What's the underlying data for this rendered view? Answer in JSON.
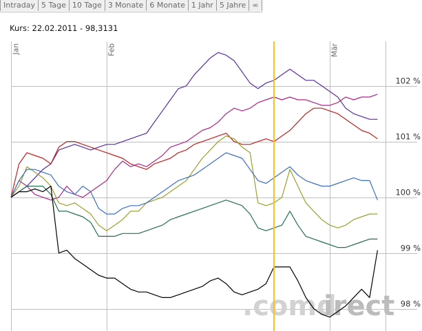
{
  "tabs": [
    "Intraday",
    "5 Tage",
    "10 Tage",
    "3 Monate",
    "6 Monate",
    "1 Jahr",
    "5 Jahre",
    "∞"
  ],
  "quote": {
    "label": "Kurs:",
    "date": "22.02.2011",
    "separator": "-",
    "value": "98,3131"
  },
  "watermark": {
    "part1": ".comd",
    "part2": "irect"
  },
  "colors": {
    "grid": "#bebebe",
    "marker": "#f6c02a",
    "background": "#ffffff"
  },
  "chart_data": {
    "type": "line",
    "x": [
      "2011-01-20",
      "2011-01-21",
      "2011-01-22",
      "2011-01-23",
      "2011-01-24",
      "2011-01-25",
      "2011-01-26",
      "2011-01-27",
      "2011-01-28",
      "2011-01-29",
      "2011-01-30",
      "2011-01-31",
      "2011-02-01",
      "2011-02-02",
      "2011-02-03",
      "2011-02-04",
      "2011-02-05",
      "2011-02-06",
      "2011-02-07",
      "2011-02-08",
      "2011-02-09",
      "2011-02-10",
      "2011-02-11",
      "2011-02-12",
      "2011-02-13",
      "2011-02-14",
      "2011-02-15",
      "2011-02-16",
      "2011-02-17",
      "2011-02-18",
      "2011-02-19",
      "2011-02-20",
      "2011-02-21",
      "2011-02-22",
      "2011-02-23",
      "2011-02-24",
      "2011-02-25",
      "2011-02-26",
      "2011-02-27",
      "2011-02-28",
      "2011-03-01",
      "2011-03-02",
      "2011-03-03",
      "2011-03-04",
      "2011-03-05",
      "2011-03-06",
      "2011-03-07"
    ],
    "x_ticks": [
      {
        "x": "2011-01-20",
        "label": "Jan"
      },
      {
        "x": "2011-02-01",
        "label": "Feb"
      },
      {
        "x": "2011-03-01",
        "label": "Mär"
      }
    ],
    "y_ticks": [
      {
        "value": 98,
        "label": "98 %"
      },
      {
        "value": 99,
        "label": "99 %"
      },
      {
        "value": 100,
        "label": "100 %"
      },
      {
        "value": 101,
        "label": "101 %"
      },
      {
        "value": 102,
        "label": "102 %"
      }
    ],
    "ylim": [
      97.6,
      102.8
    ],
    "xrange": [
      "2011-01-20",
      "2011-03-08"
    ],
    "grid": true,
    "marker_x": "2011-02-22",
    "series": [
      {
        "color": "#5a2ca0",
        "values": [
          100.0,
          100.1,
          100.2,
          100.35,
          100.5,
          100.6,
          100.85,
          100.9,
          100.95,
          100.9,
          100.85,
          100.9,
          100.95,
          100.95,
          101.0,
          101.05,
          101.1,
          101.15,
          101.35,
          101.55,
          101.75,
          101.95,
          102.0,
          102.2,
          102.35,
          102.5,
          102.6,
          102.55,
          102.45,
          102.25,
          102.05,
          101.95,
          102.05,
          102.1,
          102.2,
          102.3,
          102.2,
          102.1,
          102.1,
          102.0,
          101.9,
          101.8,
          101.6,
          101.5,
          101.45,
          101.4,
          101.4
        ]
      },
      {
        "color": "#c41e1e",
        "values": [
          100.0,
          100.6,
          100.8,
          100.75,
          100.7,
          100.6,
          100.9,
          101.0,
          101.0,
          100.95,
          100.9,
          100.85,
          100.8,
          100.75,
          100.7,
          100.6,
          100.55,
          100.5,
          100.6,
          100.65,
          100.7,
          100.8,
          100.85,
          100.95,
          101.0,
          101.05,
          101.1,
          101.15,
          101.0,
          100.95,
          100.95,
          101.0,
          101.05,
          101.0,
          101.1,
          101.2,
          101.35,
          101.5,
          101.6,
          101.6,
          101.55,
          101.5,
          101.4,
          101.3,
          101.2,
          101.15,
          101.05
        ]
      },
      {
        "color": "#b0248c",
        "values": [
          100.0,
          100.3,
          100.2,
          100.05,
          100.0,
          99.95,
          100.0,
          100.2,
          100.05,
          100.0,
          100.1,
          100.2,
          100.3,
          100.5,
          100.65,
          100.55,
          100.6,
          100.55,
          100.65,
          100.75,
          100.9,
          100.95,
          101.0,
          101.1,
          101.2,
          101.25,
          101.35,
          101.5,
          101.6,
          101.55,
          101.6,
          101.7,
          101.75,
          101.8,
          101.75,
          101.8,
          101.75,
          101.75,
          101.7,
          101.65,
          101.65,
          101.7,
          101.8,
          101.75,
          101.8,
          101.8,
          101.85
        ]
      },
      {
        "color": "#9aa02a",
        "values": [
          100.0,
          100.2,
          100.55,
          100.45,
          100.35,
          100.2,
          99.9,
          99.85,
          99.9,
          99.8,
          99.7,
          99.5,
          99.4,
          99.5,
          99.6,
          99.75,
          99.75,
          99.9,
          99.95,
          100.0,
          100.1,
          100.2,
          100.3,
          100.5,
          100.7,
          100.85,
          101.0,
          101.1,
          101.05,
          100.9,
          100.8,
          99.9,
          99.85,
          99.9,
          100.0,
          100.5,
          100.2,
          99.9,
          99.75,
          99.6,
          99.5,
          99.45,
          99.5,
          99.6,
          99.65,
          99.7,
          99.7
        ]
      },
      {
        "color": "#3a6fc0",
        "values": [
          100.0,
          100.3,
          100.5,
          100.5,
          100.45,
          100.4,
          100.2,
          100.1,
          100.05,
          100.2,
          100.1,
          99.8,
          99.7,
          99.7,
          99.8,
          99.85,
          99.85,
          99.9,
          100.0,
          100.1,
          100.2,
          100.3,
          100.35,
          100.4,
          100.5,
          100.6,
          100.7,
          100.8,
          100.75,
          100.7,
          100.5,
          100.3,
          100.25,
          100.35,
          100.45,
          100.55,
          100.4,
          100.3,
          100.25,
          100.2,
          100.2,
          100.25,
          100.3,
          100.35,
          100.3,
          100.3,
          99.95
        ]
      },
      {
        "color": "#227050",
        "values": [
          100.0,
          100.1,
          100.2,
          100.2,
          100.2,
          100.05,
          99.75,
          99.75,
          99.7,
          99.65,
          99.55,
          99.3,
          99.3,
          99.3,
          99.35,
          99.35,
          99.35,
          99.4,
          99.45,
          99.5,
          99.6,
          99.65,
          99.7,
          99.75,
          99.8,
          99.85,
          99.9,
          99.95,
          99.9,
          99.85,
          99.7,
          99.45,
          99.4,
          99.45,
          99.5,
          99.75,
          99.5,
          99.3,
          99.25,
          99.2,
          99.15,
          99.1,
          99.1,
          99.15,
          99.2,
          99.25,
          99.25
        ]
      },
      {
        "color": "#000000",
        "values": [
          100.0,
          100.1,
          100.1,
          100.15,
          100.1,
          100.2,
          99.0,
          99.05,
          98.9,
          98.8,
          98.7,
          98.6,
          98.55,
          98.55,
          98.45,
          98.35,
          98.3,
          98.3,
          98.25,
          98.2,
          98.2,
          98.25,
          98.3,
          98.35,
          98.4,
          98.5,
          98.55,
          98.45,
          98.3,
          98.25,
          98.3,
          98.35,
          98.45,
          98.75,
          98.75,
          98.75,
          98.5,
          98.2,
          98.0,
          97.9,
          97.85,
          97.95,
          98.05,
          98.2,
          98.35,
          98.2,
          99.05
        ]
      }
    ]
  }
}
